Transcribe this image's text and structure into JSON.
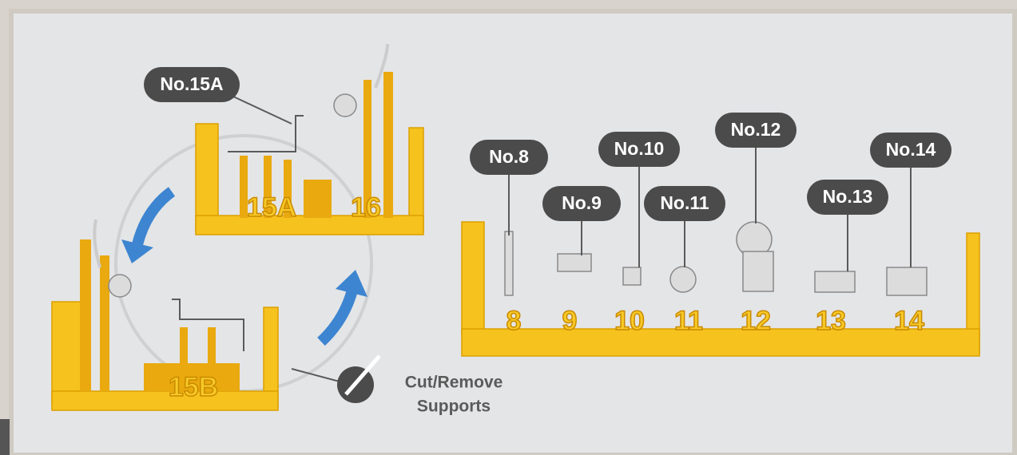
{
  "labels": [
    "No.15A",
    "No.8",
    "No.9",
    "No.10",
    "No.11",
    "No.12",
    "No.13",
    "No.14"
  ],
  "frame_numbers": [
    "15A",
    "16",
    "15B",
    "8",
    "9",
    "10",
    "11",
    "12",
    "13",
    "14"
  ],
  "caption": {
    "lines": [
      "Cut/Remove",
      "Supports"
    ]
  }
}
